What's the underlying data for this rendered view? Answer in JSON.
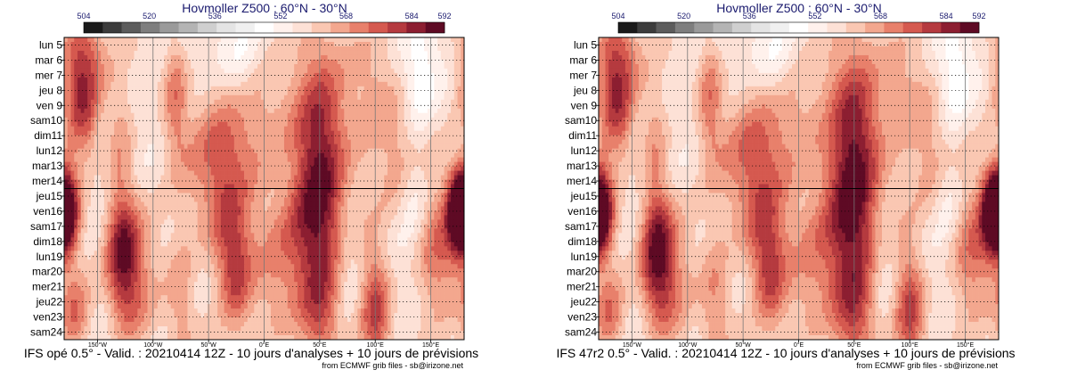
{
  "chart_data": [
    {
      "type": "heatmap",
      "title": "Hovmoller Z500 : 60°N - 30°N",
      "caption": "IFS opé 0.5° - Valid. : 20210414 12Z - 10 jours d'analyses + 10 jours de prévisions",
      "credit": "from ECMWF grib files - sb@irizone.net",
      "colorbar": {
        "tick_labels": [
          "504",
          "520",
          "536",
          "552",
          "568",
          "584",
          "592"
        ],
        "tick_values": [
          504,
          520,
          536,
          552,
          568,
          584,
          592
        ],
        "colors": [
          "#1a1a1a",
          "#3c3c3c",
          "#5c5c5c",
          "#7e7e7e",
          "#9a9a9a",
          "#b4b4b4",
          "#cfcfcf",
          "#e4e4e4",
          "#f0f0f0",
          "#ffffff",
          "#fff1ec",
          "#fde1d6",
          "#fac7b2",
          "#f3a78e",
          "#e8806b",
          "#d5594f",
          "#b53a3f",
          "#8c1e31",
          "#5e0a24"
        ]
      },
      "y_labels": [
        "lun 5",
        "mar 6",
        "mer 7",
        "jeu 8",
        "ven 9",
        "sam10",
        "dim11",
        "lun12",
        "mar13",
        "mer14",
        "jeu15",
        "ven16",
        "sam17",
        "dim18",
        "lun19",
        "mar20",
        "mer21",
        "jeu22",
        "ven23",
        "sam24"
      ],
      "weekend_color": "#dd0000",
      "x_ticks": [
        {
          "label": "150°W",
          "lon": -150
        },
        {
          "label": "100°W",
          "lon": -100
        },
        {
          "label": "50°W",
          "lon": -50
        },
        {
          "label": "0°E",
          "lon": 0
        },
        {
          "label": "50°E",
          "lon": 50
        },
        {
          "label": "100°E",
          "lon": 100
        },
        {
          "label": "150°E",
          "lon": 150
        }
      ],
      "xlim": [
        -180,
        180
      ],
      "separator_after_day_index": 9,
      "blobs": [
        {
          "lon": -165,
          "day": 1.5,
          "dl": 14,
          "dd": 2.6,
          "v": 582
        },
        {
          "lon": -162,
          "day": 5.5,
          "dl": 10,
          "dd": 2.0,
          "v": 572
        },
        {
          "lon": -178,
          "day": 11,
          "dl": 9,
          "dd": 2.2,
          "v": 590
        },
        {
          "lon": -170,
          "day": 18,
          "dl": 10,
          "dd": 2.0,
          "v": 574
        },
        {
          "lon": -130,
          "day": 6,
          "dl": 9,
          "dd": 2.5,
          "v": 568
        },
        {
          "lon": -128,
          "day": 13.5,
          "dl": 10,
          "dd": 3.2,
          "v": 582
        },
        {
          "lon": -115,
          "day": 16,
          "dl": 14,
          "dd": 4,
          "v": 570
        },
        {
          "lon": -80,
          "day": 3.5,
          "dl": 8,
          "dd": 3,
          "v": 572
        },
        {
          "lon": -75,
          "day": 17,
          "dl": 10,
          "dd": 3,
          "v": 568
        },
        {
          "lon": -40,
          "day": 7,
          "dl": 20,
          "dd": 3,
          "v": 566
        },
        {
          "lon": -30,
          "day": 13,
          "dl": 14,
          "dd": 3,
          "v": 576
        },
        {
          "lon": -25,
          "day": 16,
          "dl": 10,
          "dd": 2.5,
          "v": 568
        },
        {
          "lon": 0,
          "day": 5,
          "dl": 30,
          "dd": 3,
          "v": 566
        },
        {
          "lon": 10,
          "day": 15,
          "dl": 18,
          "dd": 4,
          "v": 568
        },
        {
          "lon": 50,
          "day": 6.5,
          "dl": 16,
          "dd": 4.2,
          "v": 584
        },
        {
          "lon": 45,
          "day": 11.5,
          "dl": 18,
          "dd": 3,
          "v": 574
        },
        {
          "lon": 50,
          "day": 18,
          "dl": 14,
          "dd": 3,
          "v": 578
        },
        {
          "lon": 100,
          "day": 2,
          "dl": 18,
          "dd": 3,
          "v": 566
        },
        {
          "lon": 100,
          "day": 17.5,
          "dl": 10,
          "dd": 3,
          "v": 580
        },
        {
          "lon": 130,
          "day": 8,
          "dl": 16,
          "dd": 3,
          "v": 568
        },
        {
          "lon": 155,
          "day": 14,
          "dl": 14,
          "dd": 3,
          "v": 576
        },
        {
          "lon": 175,
          "day": 11,
          "dl": 8,
          "dd": 2,
          "v": 588
        },
        {
          "lon": -55,
          "day": 10,
          "dl": 24,
          "dd": 4,
          "v": 562
        },
        {
          "lon": 80,
          "day": 10,
          "dl": 22,
          "dd": 5,
          "v": 562
        },
        {
          "lon": 140,
          "day": 3,
          "dl": 10,
          "dd": 2.5,
          "v": 545
        },
        {
          "lon": 135,
          "day": 9.5,
          "dl": 10,
          "dd": 2.5,
          "v": 542
        },
        {
          "lon": -20,
          "day": 1,
          "dl": 10,
          "dd": 2,
          "v": 550
        },
        {
          "lon": 75,
          "day": 14,
          "dl": 10,
          "dd": 3,
          "v": 548
        }
      ]
    },
    {
      "type": "heatmap",
      "title": "Hovmoller Z500 : 60°N - 30°N",
      "caption": "IFS 47r2 0.5° - Valid. : 20210414 12Z - 10 jours d'analyses + 10 jours de prévisions",
      "credit": "from ECMWF grib files - sb@irizone.net",
      "colorbar": {
        "tick_labels": [
          "504",
          "520",
          "536",
          "552",
          "568",
          "584",
          "592"
        ],
        "tick_values": [
          504,
          520,
          536,
          552,
          568,
          584,
          592
        ],
        "colors": [
          "#1a1a1a",
          "#3c3c3c",
          "#5c5c5c",
          "#7e7e7e",
          "#9a9a9a",
          "#b4b4b4",
          "#cfcfcf",
          "#e4e4e4",
          "#f0f0f0",
          "#ffffff",
          "#fff1ec",
          "#fde1d6",
          "#fac7b2",
          "#f3a78e",
          "#e8806b",
          "#d5594f",
          "#b53a3f",
          "#8c1e31",
          "#5e0a24"
        ]
      },
      "y_labels": [
        "lun 5",
        "mar 6",
        "mer 7",
        "jeu 8",
        "ven 9",
        "sam10",
        "dim11",
        "lun12",
        "mar13",
        "mer14",
        "jeu15",
        "ven16",
        "sam17",
        "dim18",
        "lun19",
        "mar20",
        "mer21",
        "jeu22",
        "ven23",
        "sam24"
      ],
      "weekend_color": "#dd0000",
      "x_ticks": [
        {
          "label": "150°W",
          "lon": -150
        },
        {
          "label": "100°W",
          "lon": -100
        },
        {
          "label": "50°W",
          "lon": -50
        },
        {
          "label": "0°E",
          "lon": 0
        },
        {
          "label": "50°E",
          "lon": 50
        },
        {
          "label": "100°E",
          "lon": 100
        },
        {
          "label": "150°E",
          "lon": 150
        }
      ],
      "xlim": [
        -180,
        180
      ],
      "separator_after_day_index": 9,
      "blobs": [
        {
          "lon": -165,
          "day": 1.5,
          "dl": 14,
          "dd": 2.6,
          "v": 582
        },
        {
          "lon": -162,
          "day": 5.5,
          "dl": 10,
          "dd": 2.0,
          "v": 572
        },
        {
          "lon": -178,
          "day": 11,
          "dl": 9,
          "dd": 2.2,
          "v": 590
        },
        {
          "lon": -170,
          "day": 18,
          "dl": 10,
          "dd": 2.0,
          "v": 574
        },
        {
          "lon": -130,
          "day": 6,
          "dl": 9,
          "dd": 2.5,
          "v": 568
        },
        {
          "lon": -128,
          "day": 13.5,
          "dl": 10,
          "dd": 3.2,
          "v": 584
        },
        {
          "lon": -115,
          "day": 16,
          "dl": 14,
          "dd": 4,
          "v": 570
        },
        {
          "lon": -80,
          "day": 3.5,
          "dl": 8,
          "dd": 3,
          "v": 572
        },
        {
          "lon": -75,
          "day": 17,
          "dl": 10,
          "dd": 3,
          "v": 570
        },
        {
          "lon": -40,
          "day": 7,
          "dl": 20,
          "dd": 3,
          "v": 566
        },
        {
          "lon": -30,
          "day": 13,
          "dl": 14,
          "dd": 3,
          "v": 576
        },
        {
          "lon": -25,
          "day": 16,
          "dl": 10,
          "dd": 2.5,
          "v": 568
        },
        {
          "lon": 0,
          "day": 5,
          "dl": 30,
          "dd": 3,
          "v": 566
        },
        {
          "lon": 10,
          "day": 15,
          "dl": 18,
          "dd": 4,
          "v": 568
        },
        {
          "lon": 50,
          "day": 6.5,
          "dl": 16,
          "dd": 4.2,
          "v": 586
        },
        {
          "lon": 45,
          "day": 11.5,
          "dl": 18,
          "dd": 3,
          "v": 574
        },
        {
          "lon": 50,
          "day": 18,
          "dl": 14,
          "dd": 3,
          "v": 580
        },
        {
          "lon": 100,
          "day": 2,
          "dl": 18,
          "dd": 3,
          "v": 566
        },
        {
          "lon": 100,
          "day": 17.5,
          "dl": 10,
          "dd": 3,
          "v": 580
        },
        {
          "lon": 130,
          "day": 8,
          "dl": 16,
          "dd": 3,
          "v": 568
        },
        {
          "lon": 155,
          "day": 14,
          "dl": 14,
          "dd": 3,
          "v": 576
        },
        {
          "lon": 175,
          "day": 11,
          "dl": 8,
          "dd": 2,
          "v": 588
        },
        {
          "lon": -55,
          "day": 10,
          "dl": 24,
          "dd": 4,
          "v": 562
        },
        {
          "lon": 80,
          "day": 10,
          "dl": 22,
          "dd": 5,
          "v": 562
        },
        {
          "lon": 140,
          "day": 3,
          "dl": 10,
          "dd": 2.5,
          "v": 545
        },
        {
          "lon": 135,
          "day": 9.5,
          "dl": 10,
          "dd": 2.5,
          "v": 542
        },
        {
          "lon": -20,
          "day": 1,
          "dl": 10,
          "dd": 2,
          "v": 550
        },
        {
          "lon": 75,
          "day": 14,
          "dl": 10,
          "dd": 3,
          "v": 548
        }
      ]
    }
  ]
}
